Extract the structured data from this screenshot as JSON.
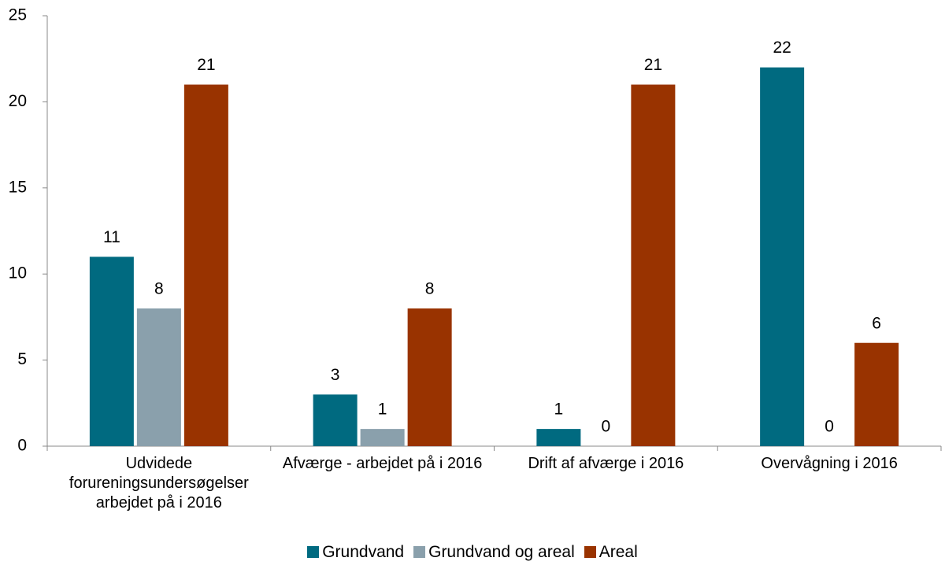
{
  "chart_data": {
    "type": "bar",
    "categories": [
      "Udvidede forureningsundersøgelser arbejdet på i 2016",
      "Afværge - arbejdet på i 2016",
      "Drift af afværge i 2016",
      "Overvågning i 2016"
    ],
    "series": [
      {
        "name": "Grundvand",
        "color": "#006a80",
        "values": [
          11,
          3,
          1,
          22
        ]
      },
      {
        "name": "Grundvand og areal",
        "color": "#8aa0ac",
        "values": [
          8,
          1,
          0,
          0
        ]
      },
      {
        "name": "Areal",
        "color": "#993300",
        "values": [
          21,
          8,
          21,
          6
        ]
      }
    ],
    "ylim": [
      0,
      25
    ],
    "yticks": [
      0,
      5,
      10,
      15,
      20,
      25
    ],
    "grid": false,
    "legend": "bottom"
  }
}
